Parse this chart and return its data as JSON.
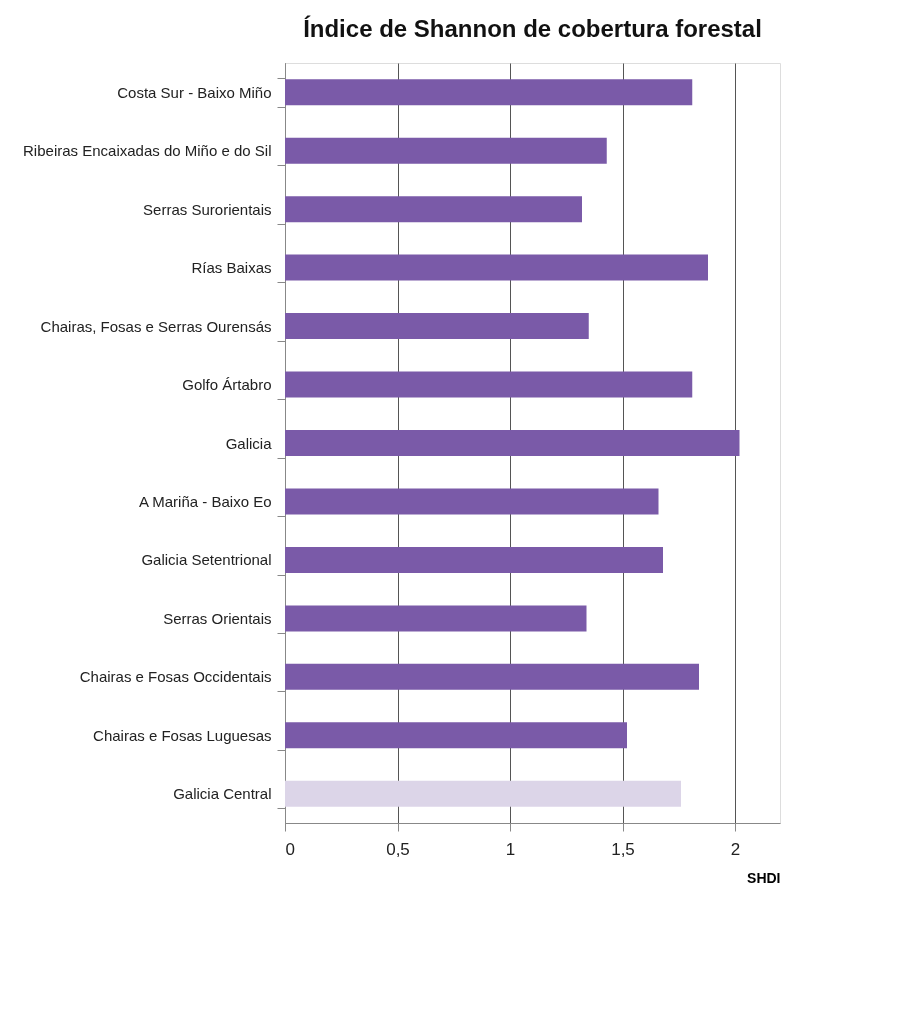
{
  "chart_data": {
    "type": "bar",
    "orientation": "horizontal",
    "title": "Índice de Shannon de cobertura forestal",
    "xlabel": "SHDI",
    "categories": [
      "Costa Sur - Baixo Miño",
      "Ribeiras Encaixadas do Miño e do Sil",
      "Serras Surorientais",
      "Rías Baixas",
      "Chairas, Fosas e Serras Ourensás",
      "Golfo Ártabro",
      "Galicia",
      "A Mariña - Baixo Eo",
      "Galicia Setentrional",
      "Serras Orientais",
      "Chairas e Fosas Occidentais",
      "Chairas e Fosas Luguesas",
      "Galicia Central"
    ],
    "values": [
      1.81,
      1.43,
      1.32,
      1.88,
      1.35,
      1.81,
      2.02,
      1.66,
      1.68,
      1.34,
      1.84,
      1.52,
      1.76
    ],
    "colors": [
      "#7a5aa8",
      "#7a5aa8",
      "#7a5aa8",
      "#7a5aa8",
      "#7a5aa8",
      "#7a5aa8",
      "#7a5aa8",
      "#7a5aa8",
      "#7a5aa8",
      "#7a5aa8",
      "#7a5aa8",
      "#7a5aa8",
      "#dcd5e8"
    ],
    "xlim": [
      0,
      2.2
    ],
    "xticks": [
      0,
      {
        "value": 0.5,
        "label": "0,5"
      },
      1,
      {
        "value": 1.5,
        "label": "1,5"
      },
      2
    ],
    "grid": "x"
  }
}
